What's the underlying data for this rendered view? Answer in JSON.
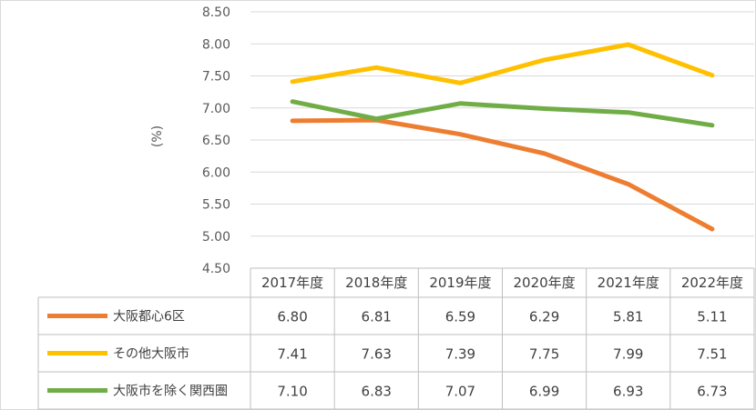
{
  "chart_data": {
    "type": "line",
    "ylabel": "(%)",
    "ylim": [
      4.5,
      8.5
    ],
    "y_ticks": [
      "8.50",
      "8.00",
      "7.50",
      "7.00",
      "6.50",
      "6.00",
      "5.50",
      "5.00",
      "4.50"
    ],
    "categories": [
      "2017年度",
      "2018年度",
      "2019年度",
      "2020年度",
      "2021年度",
      "2022年度"
    ],
    "grid": true,
    "legend": "data-table",
    "series": [
      {
        "name": "大阪都心6区",
        "color": "#ED7D31",
        "values": [
          6.8,
          6.81,
          6.59,
          6.29,
          5.81,
          5.11
        ],
        "labels": [
          "6.80",
          "6.81",
          "6.59",
          "6.29",
          "5.81",
          "5.11"
        ]
      },
      {
        "name": "その他大阪市",
        "color": "#FFC000",
        "values": [
          7.41,
          7.63,
          7.39,
          7.75,
          7.99,
          7.51
        ],
        "labels": [
          "7.41",
          "7.63",
          "7.39",
          "7.75",
          "7.99",
          "7.51"
        ]
      },
      {
        "name": "大阪市を除く関西圏",
        "color": "#70AD47",
        "values": [
          7.1,
          6.83,
          7.07,
          6.99,
          6.93,
          6.73
        ],
        "labels": [
          "7.10",
          "6.83",
          "7.07",
          "6.99",
          "6.93",
          "6.73"
        ]
      }
    ]
  }
}
